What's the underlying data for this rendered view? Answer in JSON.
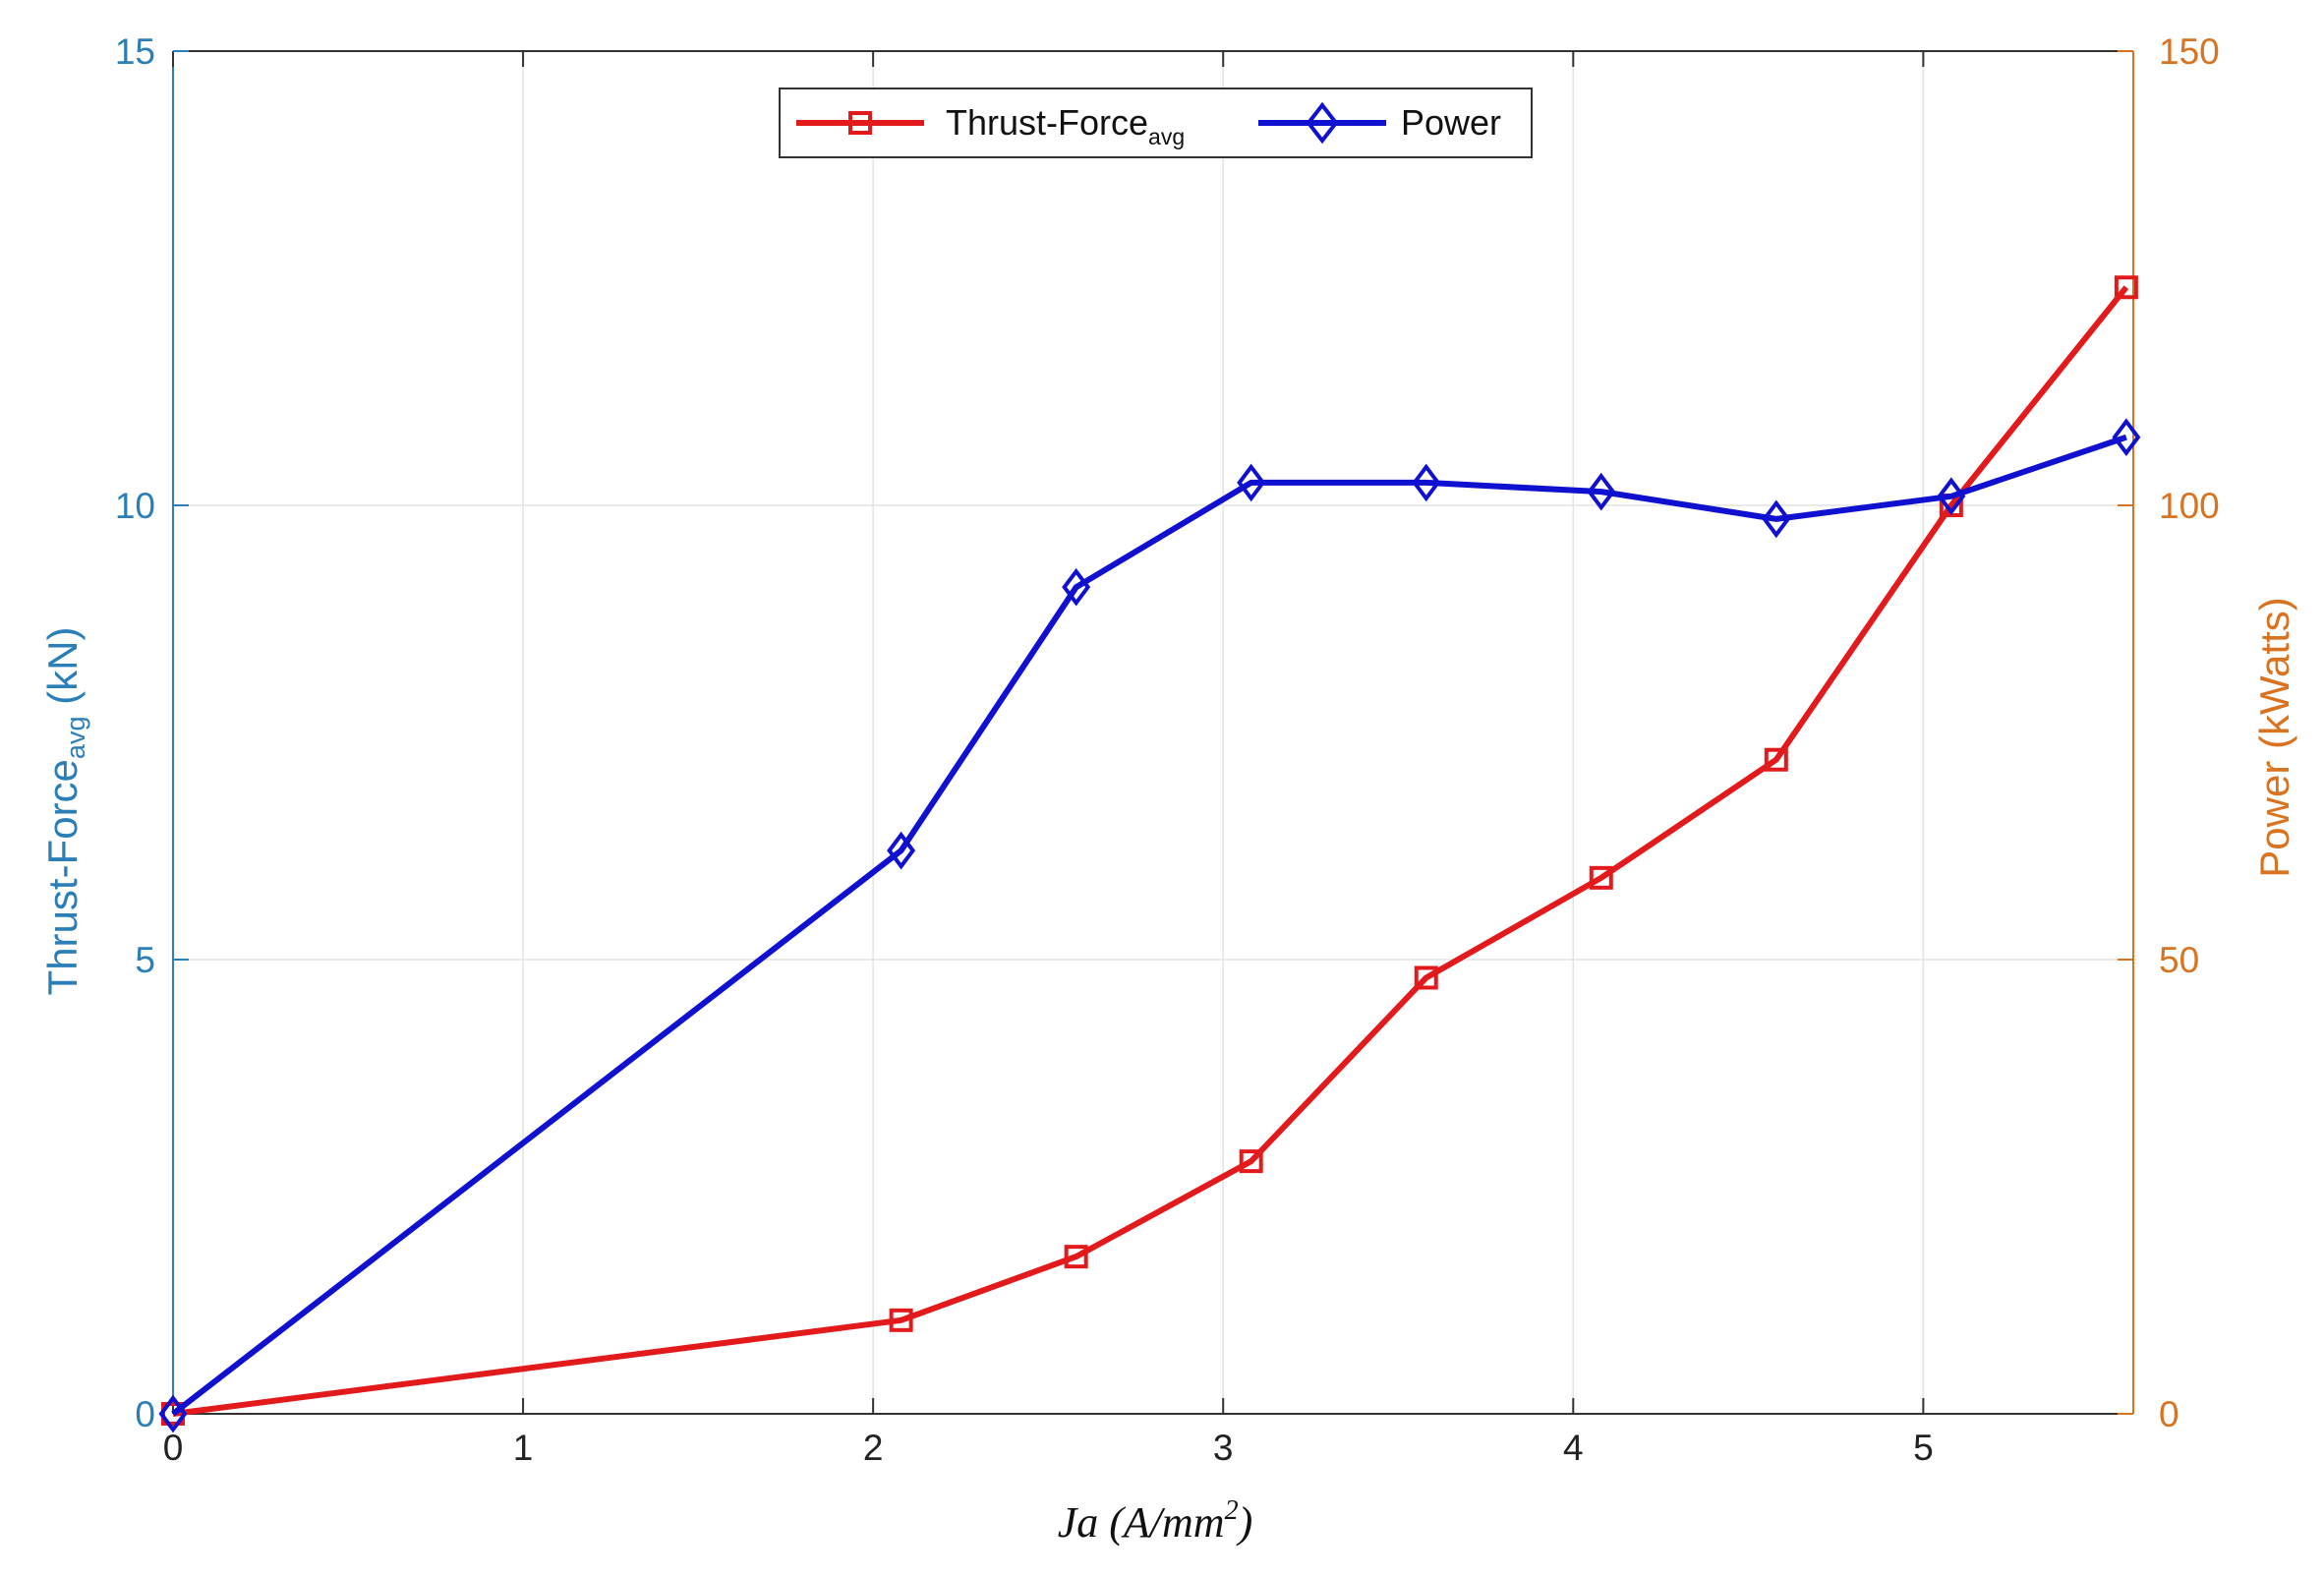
{
  "chart_data": {
    "type": "line",
    "xlabel": {
      "main": "Ja (A/mm",
      "sup": "2",
      "end": ")"
    },
    "ylabel_left": {
      "main": "Thrust-Force",
      "sub": "avg",
      "end": " (kN)"
    },
    "ylabel_right": "Power (kWatts)",
    "xlim": [
      0,
      5.6
    ],
    "ylim_left": [
      0,
      15
    ],
    "ylim_right": [
      0,
      150
    ],
    "x_ticks": [
      0,
      1,
      2,
      3,
      4,
      5
    ],
    "y_ticks_left": [
      0,
      5,
      10,
      15
    ],
    "y_ticks_right": [
      0,
      50,
      100,
      150
    ],
    "grid": true,
    "legend_position": "top-center",
    "series": [
      {
        "name": "Thrust-Force",
        "name_sub": "avg",
        "axis": "left",
        "color": "#e31a1c",
        "marker": "square",
        "x": [
          0,
          2.08,
          2.58,
          3.08,
          3.58,
          4.08,
          4.58,
          5.08,
          5.58
        ],
        "y": [
          0,
          1.03,
          1.73,
          2.78,
          4.8,
          5.9,
          7.2,
          10.0,
          12.4
        ]
      },
      {
        "name": "Power",
        "axis": "right",
        "color": "#1010d0",
        "marker": "diamond",
        "x": [
          0,
          2.08,
          2.58,
          3.08,
          3.58,
          4.08,
          4.58,
          5.08,
          5.58
        ],
        "y": [
          0,
          62,
          91,
          102.5,
          102.5,
          101.5,
          98.5,
          101,
          107.5
        ]
      }
    ],
    "colors": {
      "left_axis": "#2b7fb8",
      "right_axis": "#d9731f",
      "grid": "#e3e3e3",
      "frame": "#333333"
    }
  }
}
